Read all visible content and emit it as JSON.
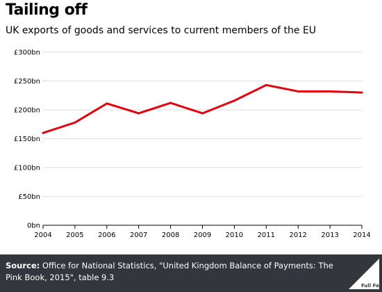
{
  "header": {
    "title": "Tailing off",
    "subtitle": "UK exports of goods and services to current members of the EU"
  },
  "footer": {
    "source_label": "Source:",
    "source_text": "Office for National Statistics, \"United Kingdom Balance of Payments: The Pink Book, 2015\", table 9.3",
    "logo_text": "Full Fact"
  },
  "colors": {
    "line": "#e8000b",
    "grid": "#dedede",
    "axis": "#000000",
    "footer_bg": "#33363d"
  },
  "chart_data": {
    "type": "line",
    "title": "Tailing off",
    "subtitle": "UK exports of goods and services to current members of the EU",
    "xlabel": "",
    "ylabel": "",
    "x": [
      "2004",
      "2005",
      "2006",
      "2007",
      "2008",
      "2009",
      "2010",
      "2011",
      "2012",
      "2013",
      "2014"
    ],
    "series": [
      {
        "values": [
          160,
          178,
          211,
          194,
          212,
          194,
          216,
          243,
          232,
          232,
          230
        ]
      }
    ],
    "ylim": [
      0,
      300
    ],
    "yticks": [
      0,
      50,
      100,
      150,
      200,
      250,
      300
    ],
    "ytick_labels": [
      "0bn",
      "£50bn",
      "£100bn",
      "£150bn",
      "£200bn",
      "£250bn",
      "£300bn"
    ],
    "grid": true,
    "legend": "none"
  }
}
